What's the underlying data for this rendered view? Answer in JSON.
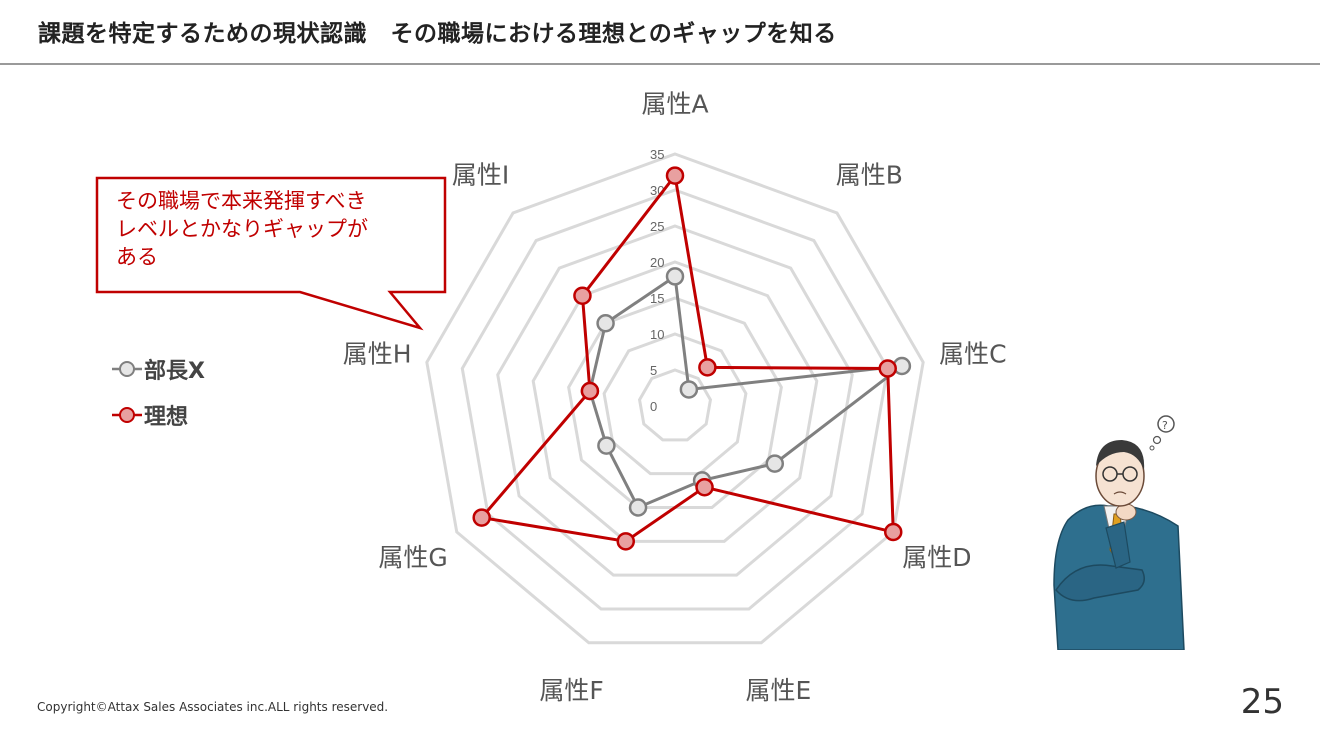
{
  "title": "課題を特定するための現状認識　その職場における理想とのギャップを知る",
  "callout": {
    "lines": [
      "その職場で本来発揮すべき",
      "レベルとかなりギャップが",
      "ある"
    ]
  },
  "legend": [
    {
      "label": "部長X",
      "color": "#808080"
    },
    {
      "label": "理想",
      "color": "#c00000"
    }
  ],
  "footer": {
    "copyright": "Copyright©Attax Sales Associates inc.ALL rights reserved.",
    "page_number": "25"
  },
  "chart_data": {
    "type": "radar",
    "categories": [
      "属性A",
      "属性B",
      "属性C",
      "属性D",
      "属性E",
      "属性F",
      "属性G",
      "属性H",
      "属性I"
    ],
    "rmax": 35,
    "ticks": [
      0,
      5,
      10,
      15,
      20,
      25,
      30,
      35
    ],
    "grid": true,
    "legend_position": "left",
    "series": [
      {
        "name": "部長X",
        "color": "#808080",
        "values": [
          18,
          3,
          32,
          16,
          11,
          15,
          11,
          12,
          15
        ]
      },
      {
        "name": "理想",
        "color": "#c00000",
        "values": [
          32,
          7,
          30,
          35,
          12,
          20,
          31,
          12,
          20
        ]
      }
    ]
  }
}
